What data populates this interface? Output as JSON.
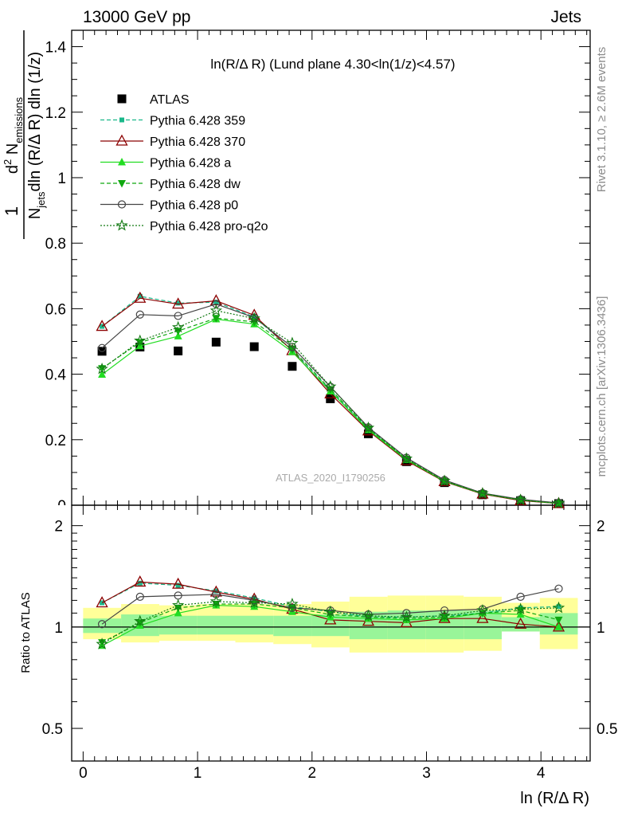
{
  "header": {
    "left": "13000 GeV pp",
    "right": "Jets"
  },
  "side_text": {
    "rivet": "Rivet 3.1.10, ≥ 2.6M events",
    "mcplots": "mcplots.cern.ch [arXiv:1306.3436]"
  },
  "watermark": "ATLAS_2020_I1790256",
  "chart_data": [
    {
      "type": "scatter",
      "panel": "main",
      "title": "ln(R/Δ R) (Lund plane 4.30<ln(1/z)<4.57)",
      "ylabel_parts": {
        "num_1": "1",
        "den_N": "N",
        "den_sub": "jets",
        "den_rest": "dln (R/Δ R) dln (1/z)",
        "d2": "d",
        "d2_sup": "2",
        "N2": "N",
        "N2_sub": "emissions"
      },
      "xlabel": "ln (R/Δ R)",
      "xlim": [
        -0.1,
        4.43
      ],
      "ylim": [
        0,
        1.45
      ],
      "yticks": [
        0,
        0.2,
        0.4,
        0.6,
        0.8,
        1,
        1.2,
        1.4
      ],
      "ytick_labels": [
        "0",
        "0.2",
        "0.4",
        "0.6",
        "0.8",
        "1",
        "1.2",
        "1.4"
      ],
      "x": [
        0.165,
        0.497,
        0.83,
        1.162,
        1.495,
        1.827,
        2.16,
        2.492,
        2.825,
        3.157,
        3.49,
        3.822,
        4.155
      ],
      "legend": {
        "placement": "top-left"
      },
      "series": [
        {
          "name": "ATLAS",
          "color": "#000000",
          "marker": "square",
          "line": "none",
          "values": [
            0.47,
            0.483,
            0.471,
            0.498,
            0.484,
            0.424,
            0.325,
            0.218,
            0.133,
            0.069,
            0.032,
            0.014,
            0.005
          ]
        },
        {
          "name": "Pythia 6.428 359",
          "color": "#1ab88a",
          "marker": "smallsquare",
          "line": "dashed",
          "values": [
            0.546,
            0.638,
            0.617,
            0.62,
            0.575,
            0.474,
            0.352,
            0.233,
            0.14,
            0.073,
            0.035,
            0.016,
            0.006
          ]
        },
        {
          "name": "Pythia 6.428 370",
          "color": "#8b0000",
          "marker": "triangle-open",
          "line": "solid",
          "values": [
            0.546,
            0.632,
            0.614,
            0.624,
            0.58,
            0.472,
            0.34,
            0.227,
            0.136,
            0.072,
            0.034,
            0.014,
            0.005
          ]
        },
        {
          "name": "Pythia 6.428 a",
          "color": "#22dd22",
          "marker": "triangle",
          "line": "solid",
          "values": [
            0.399,
            0.486,
            0.516,
            0.568,
            0.553,
            0.468,
            0.348,
            0.23,
            0.139,
            0.073,
            0.035,
            0.016,
            0.005
          ]
        },
        {
          "name": "Pythia 6.428 dw",
          "color": "#0fa80f",
          "marker": "triangle-down",
          "line": "dashed",
          "values": [
            0.418,
            0.497,
            0.532,
            0.571,
            0.56,
            0.476,
            0.354,
            0.234,
            0.141,
            0.074,
            0.036,
            0.016,
            0.006
          ]
        },
        {
          "name": "Pythia 6.428 p0",
          "color": "#444444",
          "marker": "circle-open",
          "line": "solid",
          "values": [
            0.48,
            0.582,
            0.578,
            0.614,
            0.573,
            0.483,
            0.362,
            0.238,
            0.145,
            0.077,
            0.037,
            0.018,
            0.007
          ]
        },
        {
          "name": "Pythia 6.428 pro-q2o",
          "color": "#137a13",
          "marker": "star-open",
          "line": "dotted",
          "values": [
            0.416,
            0.502,
            0.543,
            0.594,
            0.57,
            0.495,
            0.362,
            0.236,
            0.142,
            0.074,
            0.036,
            0.016,
            0.006
          ]
        }
      ]
    },
    {
      "type": "scatter",
      "panel": "ratio",
      "ylabel": "Ratio to ATLAS",
      "xlabel": "ln (R/Δ R)",
      "xlim": [
        -0.1,
        4.43
      ],
      "ylim": [
        0.4,
        2.3
      ],
      "yscale": "log",
      "yticks": [
        0.5,
        1,
        2
      ],
      "ytick_labels": [
        "0.5",
        "1",
        "2"
      ],
      "xticks": [
        0,
        1,
        2,
        3,
        4
      ],
      "xtick_labels": [
        "0",
        "1",
        "2",
        "3",
        "4"
      ],
      "x": [
        0.165,
        0.497,
        0.83,
        1.162,
        1.495,
        1.827,
        2.16,
        2.492,
        2.825,
        3.157,
        3.49,
        3.822,
        4.155
      ],
      "bin_edges": [
        0.0,
        0.332,
        0.665,
        0.997,
        1.33,
        1.662,
        1.995,
        2.327,
        2.66,
        2.992,
        3.325,
        3.657,
        3.99,
        4.322
      ],
      "band_inner": [
        [
          0.96,
          1.06
        ],
        [
          0.94,
          1.09
        ],
        [
          0.95,
          1.08
        ],
        [
          0.95,
          1.08
        ],
        [
          0.95,
          1.08
        ],
        [
          0.94,
          1.08
        ],
        [
          0.94,
          1.09
        ],
        [
          0.92,
          1.11
        ],
        [
          0.92,
          1.12
        ],
        [
          0.92,
          1.12
        ],
        [
          0.92,
          1.12
        ],
        [
          0.97,
          1.07
        ],
        [
          0.95,
          1.1
        ]
      ],
      "band_outer": [
        [
          0.92,
          1.14
        ],
        [
          0.9,
          1.17
        ],
        [
          0.91,
          1.16
        ],
        [
          0.91,
          1.17
        ],
        [
          0.9,
          1.17
        ],
        [
          0.89,
          1.17
        ],
        [
          0.87,
          1.19
        ],
        [
          0.84,
          1.23
        ],
        [
          0.84,
          1.24
        ],
        [
          0.84,
          1.24
        ],
        [
          0.85,
          1.23
        ],
        [
          0.97,
          1.18
        ],
        [
          0.86,
          1.22
        ]
      ],
      "series": [
        {
          "name": "Pythia 6.428 359",
          "color": "#1ab88a",
          "marker": "smallsquare",
          "line": "dashed",
          "values": [
            1.18,
            1.35,
            1.33,
            1.28,
            1.22,
            1.15,
            1.11,
            1.07,
            1.07,
            1.08,
            1.1,
            1.14,
            1.15
          ]
        },
        {
          "name": "Pythia 6.428 370",
          "color": "#8b0000",
          "marker": "triangle-open",
          "line": "solid",
          "values": [
            1.18,
            1.36,
            1.34,
            1.27,
            1.21,
            1.13,
            1.05,
            1.04,
            1.03,
            1.06,
            1.06,
            1.02,
            1.0
          ]
        },
        {
          "name": "Pythia 6.428 a",
          "color": "#22dd22",
          "marker": "triangle",
          "line": "solid",
          "values": [
            0.88,
            1.01,
            1.1,
            1.16,
            1.15,
            1.11,
            1.07,
            1.06,
            1.05,
            1.06,
            1.1,
            1.09,
            1.0
          ]
        },
        {
          "name": "Pythia 6.428 dw",
          "color": "#0fa80f",
          "marker": "triangle-down",
          "line": "dashed",
          "values": [
            0.9,
            1.03,
            1.14,
            1.17,
            1.17,
            1.14,
            1.09,
            1.07,
            1.06,
            1.07,
            1.1,
            1.12,
            1.05
          ]
        },
        {
          "name": "Pythia 6.428 p0",
          "color": "#444444",
          "marker": "circle-open",
          "line": "solid",
          "values": [
            1.02,
            1.23,
            1.24,
            1.25,
            1.2,
            1.14,
            1.12,
            1.09,
            1.1,
            1.12,
            1.13,
            1.23,
            1.3
          ]
        },
        {
          "name": "Pythia 6.428 pro-q2o",
          "color": "#137a13",
          "marker": "star-open",
          "line": "dotted",
          "values": [
            0.89,
            1.04,
            1.16,
            1.19,
            1.18,
            1.17,
            1.11,
            1.08,
            1.07,
            1.08,
            1.12,
            1.13,
            1.14
          ]
        }
      ]
    }
  ]
}
